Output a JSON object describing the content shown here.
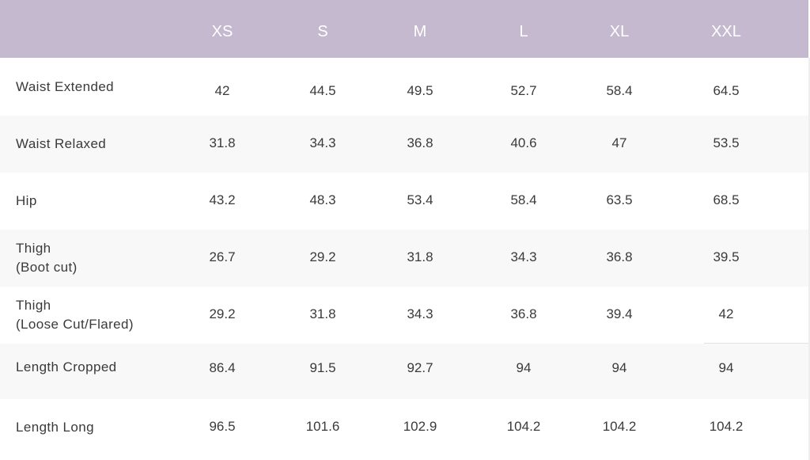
{
  "header": {
    "sizes": [
      "XS",
      "S",
      "M",
      "L",
      "XL",
      "XXL"
    ]
  },
  "rows": [
    {
      "label": [
        "Waist Extended"
      ],
      "values": [
        "42",
        "44.5",
        "49.5",
        "52.7",
        "58.4",
        "64.5"
      ]
    },
    {
      "label": [
        "Waist Relaxed"
      ],
      "values": [
        "31.8",
        "34.3",
        "36.8",
        "40.6",
        "47",
        "53.5"
      ]
    },
    {
      "label": [
        "Hip"
      ],
      "values": [
        "43.2",
        "48.3",
        "53.4",
        "58.4",
        "63.5",
        "68.5"
      ]
    },
    {
      "label": [
        "Thigh",
        "(Boot cut)"
      ],
      "values": [
        "26.7",
        "29.2",
        "31.8",
        "34.3",
        "36.8",
        "39.5"
      ]
    },
    {
      "label": [
        "Thigh",
        "(Loose Cut/Flared)"
      ],
      "values": [
        "29.2",
        "31.8",
        "34.3",
        "36.8",
        "39.4",
        "42"
      ]
    },
    {
      "label": [
        "Length Cropped"
      ],
      "values": [
        "86.4",
        "91.5",
        "92.7",
        "94",
        "94",
        "94"
      ]
    },
    {
      "label": [
        "Length Long"
      ],
      "values": [
        "96.5",
        "101.6",
        "102.9",
        "104.2",
        "104.2",
        "104.2"
      ]
    }
  ],
  "colors": {
    "header_bg": "#c4b9cf",
    "header_text": "#ffffff",
    "row_shade": "#f8f8f8",
    "text": "#3a3a3a"
  }
}
